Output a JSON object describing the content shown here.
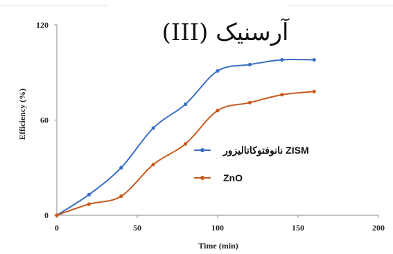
{
  "chart_data": {
    "type": "line",
    "title": "آرسنیک (III)",
    "xlabel": "Time (min)",
    "ylabel": "Efficiency (%)",
    "xlim": [
      0,
      200
    ],
    "ylim": [
      0,
      120
    ],
    "xticks": [
      "0",
      "50",
      "100",
      "150",
      "200"
    ],
    "yticks": [
      "0",
      "60",
      "120"
    ],
    "x": [
      0,
      20,
      40,
      60,
      80,
      100,
      120,
      140,
      160
    ],
    "series": [
      {
        "name": "نانوفتوکاتالیزور ZISM",
        "color": "#3a6fc4",
        "values": [
          0,
          13,
          30,
          55,
          70,
          91,
          95,
          98,
          98
        ]
      },
      {
        "name": "ZnO",
        "color": "#c65a1e",
        "values": [
          0,
          7,
          12,
          32,
          45,
          66,
          71,
          76,
          78
        ]
      }
    ],
    "legend_position": "right",
    "grid": false
  }
}
